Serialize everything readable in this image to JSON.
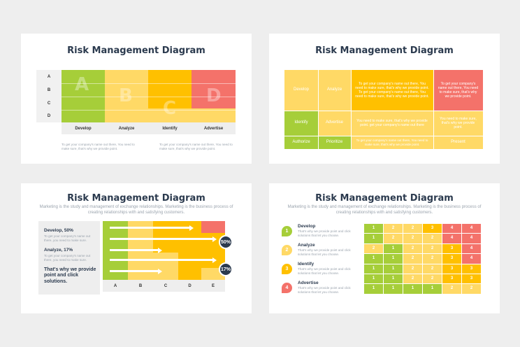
{
  "slide1": {
    "title": "Risk Management Diagram",
    "rows": [
      "A",
      "B",
      "C",
      "D"
    ],
    "columns": [
      "Develop",
      "Analyze",
      "Identify",
      "Advertise"
    ],
    "letters": [
      "A",
      "B",
      "C",
      "D"
    ],
    "notes": [
      "To get your company's name out there, You need to make sure, that's why we provide point.",
      "To get your company's name out there, You need to make sure, that's why we provide point."
    ]
  },
  "slide2": {
    "title": "Risk Management Diagram",
    "labels": [
      "Develop",
      "Analyze",
      "Identify",
      "Advertise",
      "Authorize",
      "Prioritize",
      "Present"
    ],
    "text_a": "To get your company's name out there, You need to make sure, that's why we provide point. To get your company's name out there, You need to make sure, that's why we provide point.",
    "text_b": "To get your company's name out there, You need to make sure, that's why we provide point.",
    "text_c": "You need to make sure, that's why we provide point. get your company's name out there",
    "text_d": "You need to make sure, that's why we provide point.",
    "text_e": "To get your company's name out there, You need to make sure, that's why we provide point."
  },
  "slide3": {
    "title": "Risk Management Diagram",
    "subtitle": "Marketing is the study and management of exchange relationships. Marketing is the business process of creating relationships with and satisfying customers.",
    "items": [
      {
        "heading": "Develop, 50%",
        "text": "To get your company's name out there, you need to make sure."
      },
      {
        "heading": "Analyze, 17%",
        "text": "To get your company's name out there, you need to make sure."
      }
    ],
    "callout": "That's why we provide point and click solutions.",
    "columns": [
      "A",
      "B",
      "C",
      "D",
      "E"
    ],
    "badges": [
      "50%",
      "17%"
    ]
  },
  "slide4": {
    "title": "Risk Management Diagram",
    "subtitle": "Marketing is the study and management of exchange relationships. Marketing is the business process of creating relationships with and satisfying customers.",
    "steps": [
      {
        "num": "1",
        "label": "Develop",
        "text": "That's why we provide point and click solutions that let you choose."
      },
      {
        "num": "2",
        "label": "Analyze",
        "text": "That's why we provide point and click solutions that let you choose."
      },
      {
        "num": "3",
        "label": "Identify",
        "text": "That's why we provide point and click solutions that let you choose."
      },
      {
        "num": "4",
        "label": "Advertise",
        "text": "That's why we provide point and click solutions that let you choose."
      }
    ],
    "grid": [
      [
        "1",
        "2",
        "2",
        "3",
        "4",
        "4"
      ],
      [
        "1",
        "2",
        "2",
        "2",
        "4",
        "4"
      ],
      [
        "2",
        "1",
        "2",
        "2",
        "3",
        "4"
      ],
      [
        "1",
        "1",
        "2",
        "2",
        "3",
        "4"
      ],
      [
        "1",
        "1",
        "2",
        "2",
        "3",
        "3"
      ],
      [
        "1",
        "1",
        "2",
        "2",
        "3",
        "3"
      ],
      [
        "1",
        "1",
        "1",
        "1",
        "2",
        "2"
      ]
    ]
  },
  "colors": {
    "green": "#a6ce39",
    "light_yellow": "#ffd966",
    "orange": "#ffc000",
    "red": "#f4726a",
    "dark": "#2b3a4e"
  }
}
